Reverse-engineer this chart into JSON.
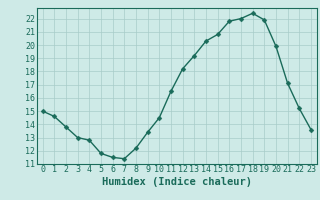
{
  "x": [
    0,
    1,
    2,
    3,
    4,
    5,
    6,
    7,
    8,
    9,
    10,
    11,
    12,
    13,
    14,
    15,
    16,
    17,
    18,
    19,
    20,
    21,
    22,
    23
  ],
  "y": [
    15.0,
    14.6,
    13.8,
    13.0,
    12.8,
    11.8,
    11.5,
    11.4,
    12.2,
    13.4,
    14.5,
    16.5,
    18.2,
    19.2,
    20.3,
    20.8,
    21.8,
    22.0,
    22.4,
    21.9,
    19.9,
    17.1,
    15.2,
    13.6
  ],
  "line_color": "#1a6b5a",
  "marker": "D",
  "marker_size": 2.5,
  "bg_color": "#ceeae7",
  "grid_color": "#a8ccc9",
  "xlabel": "Humidex (Indice chaleur)",
  "xlim": [
    -0.5,
    23.5
  ],
  "ylim": [
    11,
    22.8
  ],
  "yticks": [
    11,
    12,
    13,
    14,
    15,
    16,
    17,
    18,
    19,
    20,
    21,
    22
  ],
  "xticks": [
    0,
    1,
    2,
    3,
    4,
    5,
    6,
    7,
    8,
    9,
    10,
    11,
    12,
    13,
    14,
    15,
    16,
    17,
    18,
    19,
    20,
    21,
    22,
    23
  ],
  "font_color": "#1a6b5a",
  "tick_fontsize": 6,
  "xlabel_fontsize": 7.5,
  "linewidth": 1.0
}
